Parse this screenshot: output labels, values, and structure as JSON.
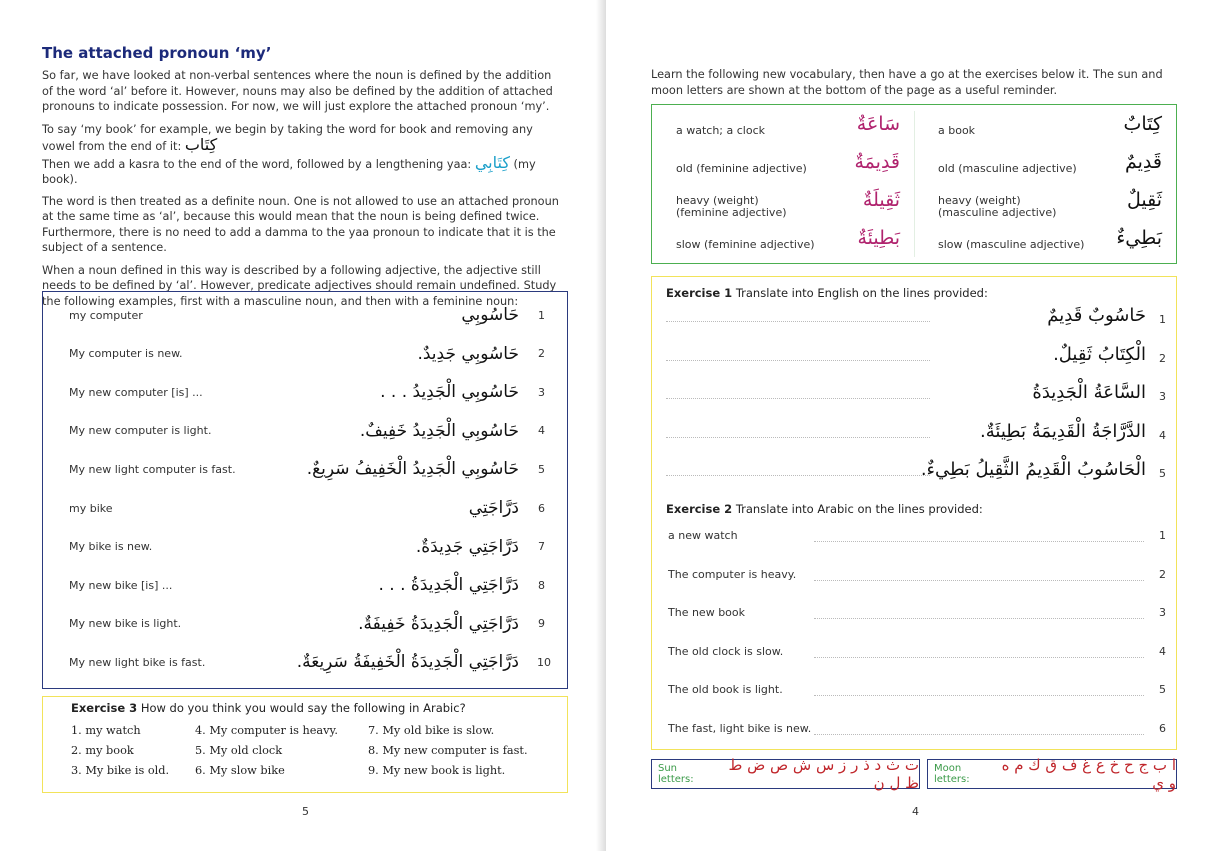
{
  "left_page": {
    "title": "The attached pronoun ‘my’",
    "paragraphs": [
      "So far, we have looked at non-verbal sentences where the noun is defined by the addition of the word ‘al’ before it. However, nouns may also be defined by the addition of attached pronouns to indicate possession. For now, we will just explore the attached pronoun ‘my’.",
      "To say ‘my book’ for example, we begin by taking the word for book and removing any vowel from the end of it:",
      "Then we add a kasra to the end of the word, followed by a lengthening yaa:",
      "The word is then treated as a definite noun. One is not allowed to use an attached pronoun at the same time as ‘al’, because this would mean that the noun is being defined twice. Furthermore, there is no need to add a damma to the yaa pronoun to indicate that it is the subject of a sentence.",
      "When a noun defined in this way is described by a following adjective, the adjective still needs to be defined by ‘al’. However, predicate adjectives should remain undefined. Study the following examples, first with a masculine noun, and then with a feminine noun:"
    ],
    "kitab": "كِتَاب",
    "kitabi": "كِتَابِي",
    "my_book": "(my book).",
    "examples": [
      {
        "n": "1",
        "en": "my computer",
        "ar": "حَاسُوبِي"
      },
      {
        "n": "2",
        "en": "My computer is new.",
        "ar": "حَاسُوبِي جَدِيدٌ."
      },
      {
        "n": "3",
        "en": "My new computer [is] ...",
        "ar": "حَاسُوبِي الْجَدِيدُ . . ."
      },
      {
        "n": "4",
        "en": "My new computer is light.",
        "ar": "حَاسُوبِي الْجَدِيدُ خَفِيفٌ."
      },
      {
        "n": "5",
        "en": "My new light computer is fast.",
        "ar": "حَاسُوبِي الْجَدِيدُ الْخَفِيفُ سَرِيعٌ."
      },
      {
        "n": "6",
        "en": "my bike",
        "ar": "دَرَّاجَتِي"
      },
      {
        "n": "7",
        "en": "My bike is new.",
        "ar": "دَرَّاجَتِي جَدِيدَةٌ."
      },
      {
        "n": "8",
        "en": "My new bike [is] ...",
        "ar": "دَرَّاجَتِي الْجَدِيدَةُ . . ."
      },
      {
        "n": "9",
        "en": "My new bike is light.",
        "ar": "دَرَّاجَتِي الْجَدِيدَةُ خَفِيفَةٌ."
      },
      {
        "n": "10",
        "en": "My new light bike is fast.",
        "ar": "دَرَّاجَتِي الْجَدِيدَةُ الْخَفِيفَةُ سَرِيعَةٌ."
      }
    ],
    "exercise3": {
      "label": "Exercise 3",
      "instruction": "How do you think you would say the following in Arabic?",
      "items": [
        "1.  my watch",
        "4.  My computer is heavy.",
        "7.  My old bike is slow.",
        "2.  my book",
        "5.  My old clock",
        "8.  My new computer is fast.",
        "3.  My bike is old.",
        "6.  My slow bike",
        "9.  My new book is light."
      ]
    },
    "page_number": "5"
  },
  "right_page": {
    "intro": "Learn the following new vocabulary, then have a go at the exercises below it. The sun and moon letters are shown at the bottom of the page as a useful reminder.",
    "vocab": [
      {
        "en": "a watch; a clock",
        "ar": "سَاعَةٌ"
      },
      {
        "en": "a book",
        "ar": "كِتَابٌ"
      },
      {
        "en": "old (feminine adjective)",
        "ar": "قَدِيمَةٌ"
      },
      {
        "en": "old (masculine adjective)",
        "ar": "قَدِيمٌ"
      },
      {
        "en": "heavy (weight)\n(feminine adjective)",
        "ar": "ثَقِيلَةٌ"
      },
      {
        "en": "heavy (weight)\n(masculine adjective)",
        "ar": "ثَقِيلٌ"
      },
      {
        "en": "slow (feminine adjective)",
        "ar": "بَطِيئَةٌ"
      },
      {
        "en": "slow (masculine adjective)",
        "ar": "بَطِيءٌ"
      }
    ],
    "exercise1": {
      "label": "Exercise 1",
      "instruction": "Translate into English on the lines provided:",
      "items": [
        {
          "n": "1",
          "ar": "حَاسُوبٌ قَدِيمٌ"
        },
        {
          "n": "2",
          "ar": "الْكِتَابُ ثَقِيلٌ."
        },
        {
          "n": "3",
          "ar": "السَّاعَةُ الْجَدِيدَةُ"
        },
        {
          "n": "4",
          "ar": "الدَّرَّاجَةُ الْقَدِيمَةُ بَطِيئَةٌ."
        },
        {
          "n": "5",
          "ar": "الْحَاسُوبُ الْقَدِيمُ الثَّقِيلُ بَطِيءٌ."
        }
      ]
    },
    "exercise2": {
      "label": "Exercise 2",
      "instruction": "Translate into Arabic on the lines provided:",
      "items": [
        {
          "n": "1",
          "en": "a new watch"
        },
        {
          "n": "2",
          "en": "The computer is heavy."
        },
        {
          "n": "3",
          "en": "The new book"
        },
        {
          "n": "4",
          "en": "The old clock is slow."
        },
        {
          "n": "5",
          "en": "The old book is light."
        },
        {
          "n": "6",
          "en": "The fast, light bike is new."
        }
      ]
    },
    "sun_label": "Sun letters:",
    "sun_letters": "ت ث د ذ ر ز س ش ص ض ط ظ ل ن",
    "moon_label": "Moon letters:",
    "moon_letters": "ا ب ج ح خ ع غ ف ق ك م ه و ي",
    "page_number": "4"
  },
  "colors": {
    "title": "#1c2a7a",
    "blue_box": "#2b3a7e",
    "yellow_box": "#f2e35a",
    "green_box": "#4caf50",
    "pink": "#b0236e",
    "cyan": "#1a9fc9",
    "red": "#c0262b"
  }
}
